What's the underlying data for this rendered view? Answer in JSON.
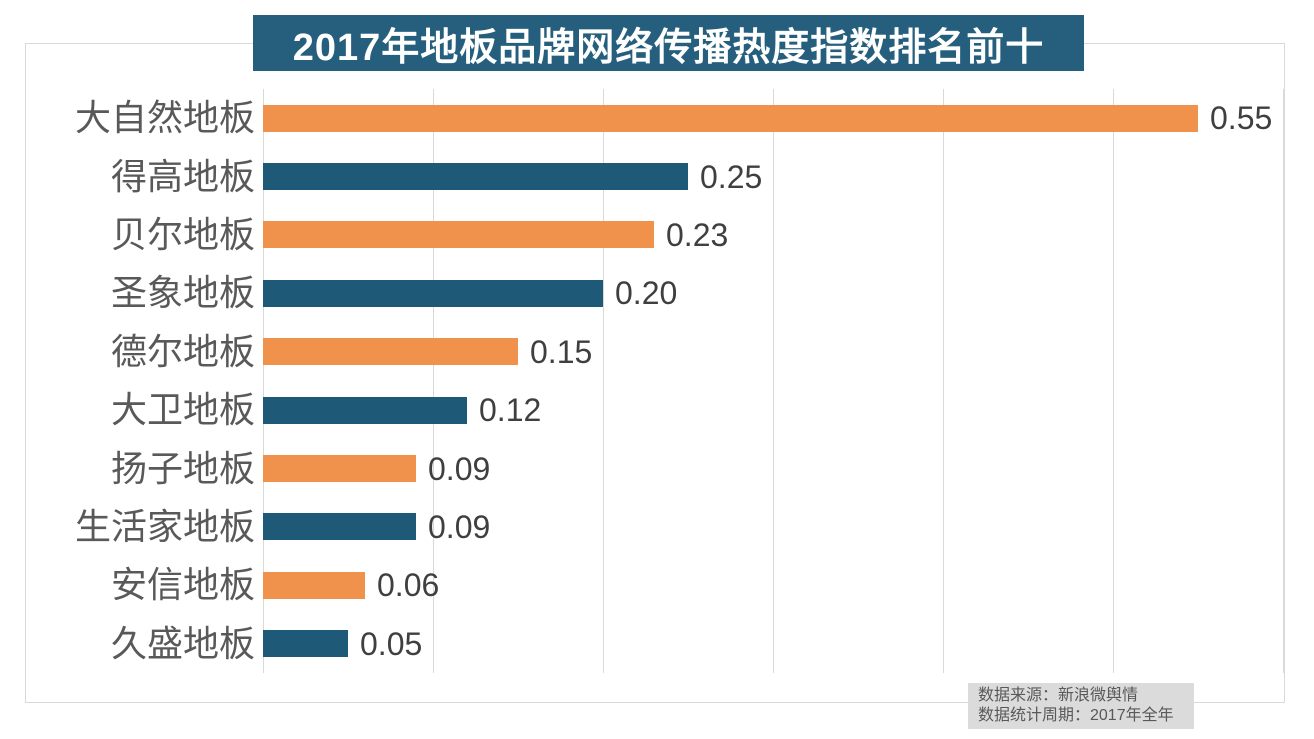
{
  "title": "2017年地板品牌网络传播热度指数排名前十",
  "source_note": {
    "line1": "数据来源：新浪微舆情",
    "line2": "数据统计周期：2017年全年"
  },
  "colors": {
    "title_bg": "#255F7D",
    "bar_orange": "#F0914C",
    "bar_teal": "#1E5A78",
    "gridline": "#D9D9D9",
    "frame_border": "#D9D9D9",
    "category_text": "#595959",
    "value_text": "#3F3F3F",
    "source_bg": "#DBDBDB",
    "source_text": "#595959",
    "title_text": "#FFFFFF"
  },
  "chart_data": {
    "type": "bar",
    "orientation": "horizontal",
    "title": "2017年地板品牌网络传播热度指数排名前十",
    "categories": [
      "大自然地板",
      "得高地板",
      "贝尔地板",
      "圣象地板",
      "德尔地板",
      "大卫地板",
      "扬子地板",
      "生活家地板",
      "安信地板",
      "久盛地板"
    ],
    "values": [
      0.55,
      0.25,
      0.23,
      0.2,
      0.15,
      0.12,
      0.09,
      0.09,
      0.06,
      0.05
    ],
    "value_labels": [
      "0.55",
      "0.25",
      "0.23",
      "0.20",
      "0.15",
      "0.12",
      "0.09",
      "0.09",
      "0.06",
      "0.05"
    ],
    "bar_color_pattern": [
      "#F0914C",
      "#1E5A78"
    ],
    "xlabel": "",
    "ylabel": "",
    "xlim": [
      0,
      0.6
    ],
    "gridline_interval": 0.1,
    "grid": true,
    "legend": false,
    "value_labels_shown": true,
    "axis_tick_labels_shown": false,
    "source": "数据来源：新浪微舆情",
    "period": "数据统计周期：2017年全年"
  }
}
